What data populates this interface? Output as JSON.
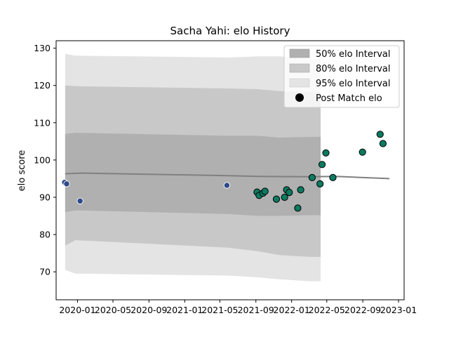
{
  "chart_data": {
    "type": "scatter",
    "title": "Sacha Yahi: elo History",
    "xlabel": "",
    "ylabel": "elo score",
    "xlim": [
      "2019-10-20",
      "2023-01-20"
    ],
    "ylim": [
      62.5,
      132
    ],
    "yticks": [
      70,
      80,
      90,
      100,
      110,
      120,
      130
    ],
    "xticks": [
      "2020-01",
      "2020-05",
      "2020-09",
      "2021-01",
      "2021-05",
      "2021-09",
      "2022-01",
      "2022-05",
      "2022-09",
      "2023-01"
    ],
    "grid": false,
    "legend": {
      "placement": "top-right",
      "entries": [
        "50% elo Interval",
        "80% elo Interval",
        "95% elo Interval",
        "Post Match elo"
      ]
    },
    "colors": {
      "band50": "#b0b0b0",
      "band80": "#c8c8c8",
      "band95": "#e4e4e4",
      "mean_line": "#808080",
      "early_points": "#2e4a8a",
      "recent_points": "#0b7a60"
    },
    "bands": {
      "x": [
        "2019-11-20",
        "2019-12-25",
        "2021-05-30",
        "2021-09-10",
        "2021-11-20",
        "2022-03-01",
        "2022-04-10"
      ],
      "p50_lo": [
        86.0,
        86.5,
        85.5,
        85.0,
        85.0,
        85.2,
        85.2
      ],
      "p50_hi": [
        107.0,
        107.3,
        106.5,
        106.5,
        106.0,
        106.2,
        106.2
      ],
      "p80_lo": [
        77.0,
        78.5,
        76.5,
        75.5,
        74.5,
        74.0,
        74.0
      ],
      "p80_hi": [
        120.0,
        119.8,
        119.2,
        119.0,
        118.5,
        118.3,
        118.3
      ],
      "p95_lo": [
        70.5,
        69.5,
        69.0,
        68.5,
        68.0,
        67.5,
        67.5
      ],
      "p95_hi": [
        128.5,
        128.0,
        127.5,
        127.8,
        127.8,
        127.0,
        127.0
      ]
    },
    "mean_line": {
      "x": [
        "2019-11-20",
        "2020-01-15",
        "2021-05-30",
        "2021-09-10",
        "2022-03-01",
        "2022-06-01",
        "2022-12-01"
      ],
      "y": [
        96.3,
        96.5,
        95.8,
        95.6,
        95.5,
        95.6,
        95.0
      ]
    },
    "series": [
      {
        "name": "Post Match elo",
        "points": [
          {
            "x": "2019-11-18",
            "y": 94.0,
            "group": "early"
          },
          {
            "x": "2019-11-25",
            "y": 93.6,
            "group": "early"
          },
          {
            "x": "2020-01-10",
            "y": 89.0,
            "group": "early"
          },
          {
            "x": "2021-05-25",
            "y": 93.2,
            "group": "early"
          },
          {
            "x": "2021-09-05",
            "y": 91.4,
            "group": "recent"
          },
          {
            "x": "2021-09-12",
            "y": 90.5,
            "group": "recent"
          },
          {
            "x": "2021-09-25",
            "y": 91.1,
            "group": "recent"
          },
          {
            "x": "2021-10-02",
            "y": 91.6,
            "group": "recent"
          },
          {
            "x": "2021-11-10",
            "y": 89.5,
            "group": "recent"
          },
          {
            "x": "2021-12-08",
            "y": 90.0,
            "group": "recent"
          },
          {
            "x": "2021-12-15",
            "y": 92.0,
            "group": "recent"
          },
          {
            "x": "2021-12-24",
            "y": 91.3,
            "group": "recent"
          },
          {
            "x": "2022-01-22",
            "y": 87.1,
            "group": "recent"
          },
          {
            "x": "2022-02-01",
            "y": 92.0,
            "group": "recent"
          },
          {
            "x": "2022-03-12",
            "y": 95.3,
            "group": "recent"
          },
          {
            "x": "2022-04-08",
            "y": 93.6,
            "group": "recent"
          },
          {
            "x": "2022-04-15",
            "y": 98.8,
            "group": "recent"
          },
          {
            "x": "2022-04-28",
            "y": 101.9,
            "group": "recent"
          },
          {
            "x": "2022-05-22",
            "y": 95.3,
            "group": "recent"
          },
          {
            "x": "2022-08-31",
            "y": 102.1,
            "group": "recent"
          },
          {
            "x": "2022-10-30",
            "y": 106.9,
            "group": "recent"
          },
          {
            "x": "2022-11-09",
            "y": 104.4,
            "group": "recent"
          }
        ]
      }
    ]
  }
}
